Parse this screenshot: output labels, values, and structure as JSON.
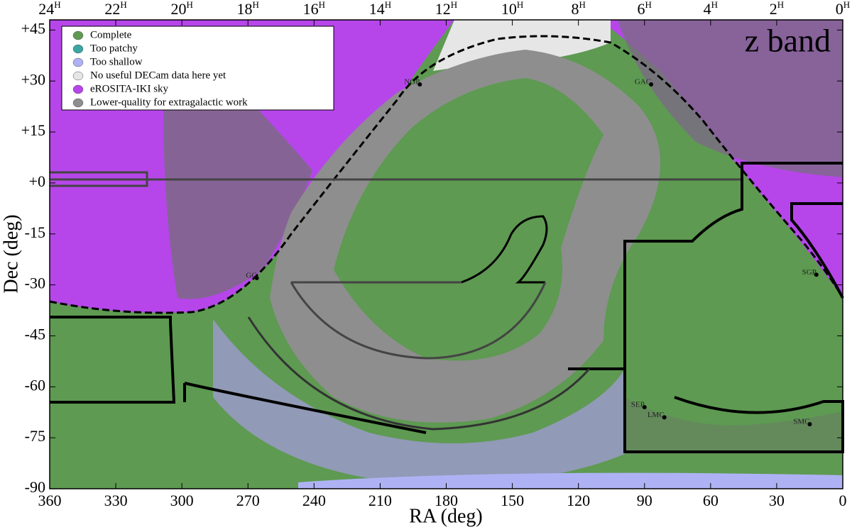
{
  "chart_data": {
    "type": "skymap",
    "annotation": "z band",
    "xlabel": "RA (deg)",
    "ylabel": "Dec (deg)",
    "xlim": [
      360,
      0
    ],
    "ylim": [
      -90,
      48
    ],
    "xticks": [
      360,
      330,
      300,
      270,
      240,
      210,
      180,
      150,
      120,
      90,
      60,
      30,
      0
    ],
    "x2ticks": [
      {
        "value": 360,
        "label": "24"
      },
      {
        "value": 330,
        "label": "22"
      },
      {
        "value": 300,
        "label": "20"
      },
      {
        "value": 270,
        "label": "18"
      },
      {
        "value": 240,
        "label": "16"
      },
      {
        "value": 210,
        "label": "14"
      },
      {
        "value": 180,
        "label": "12"
      },
      {
        "value": 150,
        "label": "10"
      },
      {
        "value": 120,
        "label": "8"
      },
      {
        "value": 90,
        "label": "6"
      },
      {
        "value": 60,
        "label": "4"
      },
      {
        "value": 30,
        "label": "2"
      },
      {
        "value": 0,
        "label": "0"
      }
    ],
    "x2tick_suffix": "H",
    "yticks": [
      {
        "value": 45,
        "label": "+45"
      },
      {
        "value": 30,
        "label": "+30"
      },
      {
        "value": 15,
        "label": "+15"
      },
      {
        "value": 0,
        "label": "+0"
      },
      -15,
      -30,
      -45,
      -60,
      -75,
      -90
    ],
    "legend": [
      {
        "name": "Complete",
        "color": "#5e9a52"
      },
      {
        "name": "Too patchy",
        "color": "#3aa6a2"
      },
      {
        "name": "Too shallow",
        "color": "#aeb2f4"
      },
      {
        "name": "No useful DECam data here yet",
        "color": "#e6e6e6"
      },
      {
        "name": "eROSITA-IKI sky",
        "color": "#b646ea"
      },
      {
        "name": "Lower-quality for extragalactic work",
        "color": "#8e8e8e"
      }
    ],
    "points": [
      {
        "text": "NGP",
        "ra": 192,
        "dec": 29
      },
      {
        "text": "GAC",
        "ra": 87,
        "dec": 29
      },
      {
        "text": "GC",
        "ra": 266,
        "dec": -28
      },
      {
        "text": "SGP",
        "ra": 12,
        "dec": -27
      },
      {
        "text": "SEP",
        "ra": 90,
        "dec": -66
      },
      {
        "text": "LMC",
        "ra": 81,
        "dec": -69
      },
      {
        "text": "SMC",
        "ra": 15,
        "dec": -71
      }
    ]
  }
}
